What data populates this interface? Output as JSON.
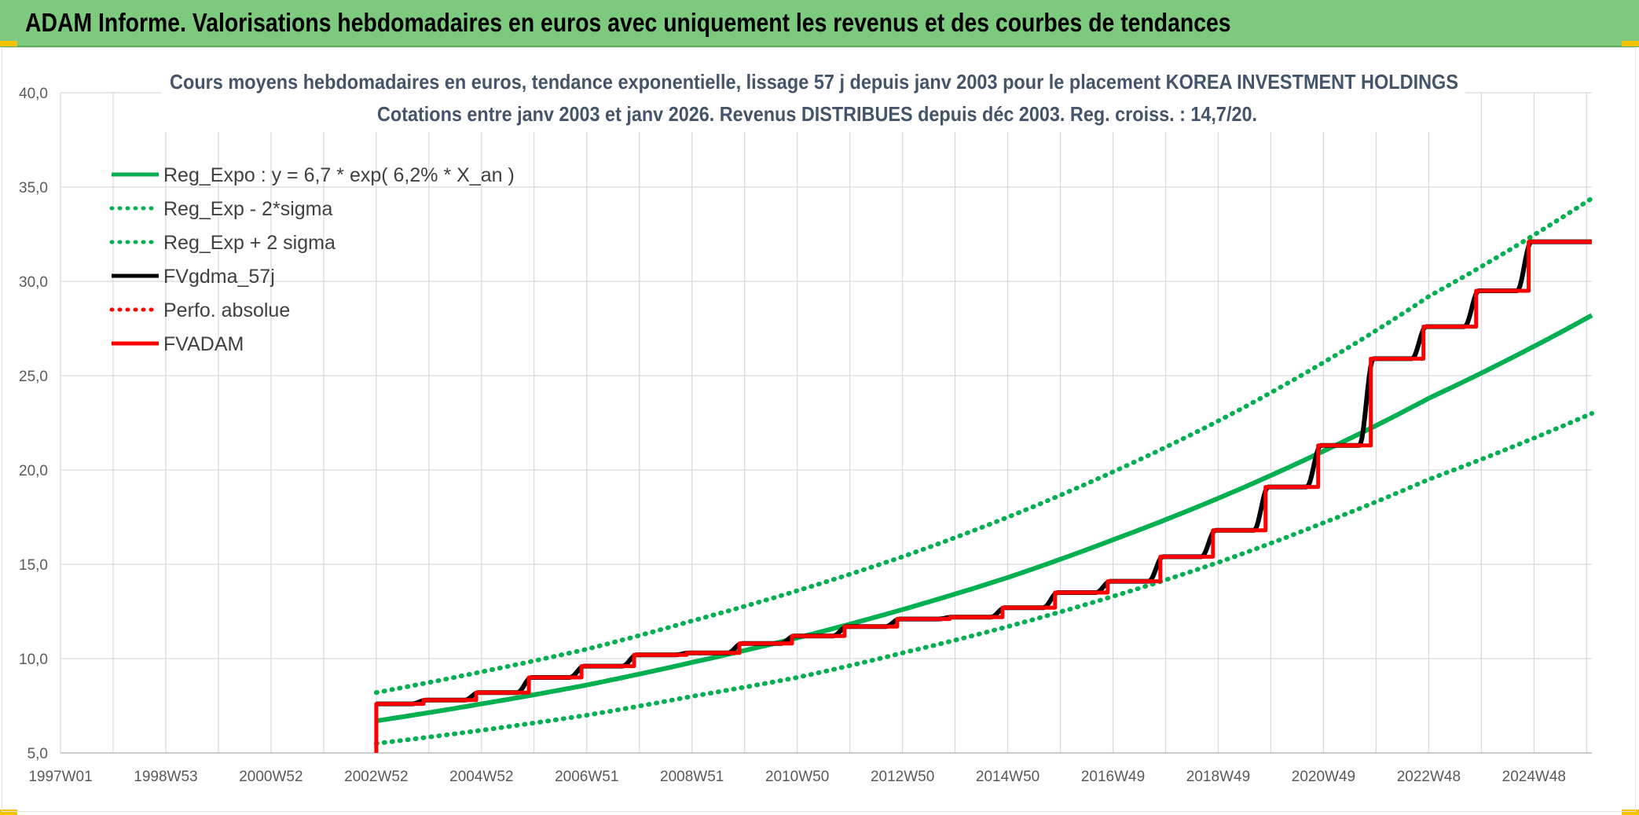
{
  "banner": {
    "title": "ADAM Informe. Valorisations hebdomadaires en euros avec uniquement les revenus et des courbes de tendances"
  },
  "chart_data": {
    "type": "line",
    "title_line1": "Cours moyens hebdomadaires en euros, tendance exponentielle, lissage 57 j depuis janv 2003 pour le placement KOREA INVESTMENT HOLDINGS",
    "title_line2": "Cotations entre janv 2003 et janv 2026. Revenus DISTRIBUES depuis déc 2003. Reg. croiss. : 14,7/20.",
    "xlabel": "",
    "ylabel": "",
    "x_tick_labels": [
      "1997W01",
      "1998W53",
      "2000W52",
      "2002W52",
      "2004W52",
      "2006W51",
      "2008W51",
      "2010W50",
      "2012W50",
      "2014W50",
      "2016W49",
      "2018W49",
      "2020W49",
      "2022W48",
      "2024W48"
    ],
    "x_tick_years": [
      1997,
      1999,
      2001,
      2003,
      2005,
      2007,
      2009,
      2011,
      2013,
      2015,
      2017,
      2019,
      2021,
      2023,
      2025
    ],
    "xlim": [
      1997,
      2026.1
    ],
    "y_ticks": [
      "5,0",
      "10,0",
      "15,0",
      "20,0",
      "25,0",
      "30,0",
      "35,0",
      "40,0"
    ],
    "y_tick_values": [
      5,
      10,
      15,
      20,
      25,
      30,
      35,
      40
    ],
    "ylim": [
      5,
      40
    ],
    "grid": true,
    "legend_position": "top-left",
    "colors": {
      "green": "#00b050",
      "black": "#000000",
      "red": "#ff0000"
    },
    "series": [
      {
        "name": "Reg_Expo : y = 6,7 * exp( 6,2% *  X_an )",
        "style": "solid",
        "color": "#00b050",
        "x": [
          2003,
          2005,
          2007,
          2009,
          2011,
          2013,
          2015,
          2017,
          2019,
          2021,
          2023,
          2026.1
        ],
        "y": [
          6.7,
          7.6,
          8.6,
          9.8,
          11.1,
          12.6,
          14.3,
          16.3,
          18.5,
          21.0,
          23.8,
          28.2
        ]
      },
      {
        "name": "Reg_Exp - 2*sigma",
        "style": "dotted",
        "color": "#00b050",
        "x": [
          2003,
          2005,
          2007,
          2009,
          2011,
          2013,
          2015,
          2017,
          2019,
          2021,
          2023,
          2026.1
        ],
        "y": [
          5.5,
          6.2,
          7.0,
          8.0,
          9.0,
          10.3,
          11.7,
          13.3,
          15.1,
          17.2,
          19.5,
          23.0
        ]
      },
      {
        "name": "Reg_Exp + 2 sigma",
        "style": "dotted",
        "color": "#00b050",
        "x": [
          2003,
          2005,
          2007,
          2009,
          2011,
          2013,
          2015,
          2017,
          2019,
          2021,
          2023,
          2026.1
        ],
        "y": [
          8.2,
          9.3,
          10.5,
          12.0,
          13.6,
          15.4,
          17.5,
          19.9,
          22.6,
          25.7,
          29.2,
          34.4
        ]
      },
      {
        "name": "FVgdma_57j",
        "style": "solid",
        "color": "#000000",
        "x": [
          2003.0,
          2003.9,
          2004.9,
          2005.9,
          2006.9,
          2007.9,
          2008.9,
          2009.9,
          2010.9,
          2011.9,
          2012.9,
          2013.9,
          2014.9,
          2015.9,
          2016.9,
          2017.9,
          2018.9,
          2019.9,
          2020.9,
          2021.9,
          2022.9,
          2023.9,
          2024.9,
          2026.1
        ],
        "y": [
          7.6,
          7.8,
          8.2,
          9.0,
          9.6,
          10.2,
          10.3,
          10.8,
          11.2,
          11.7,
          12.1,
          12.2,
          12.7,
          13.5,
          14.1,
          15.4,
          16.8,
          19.1,
          21.3,
          25.9,
          27.6,
          29.5,
          32.1,
          32.1
        ]
      },
      {
        "name": "Perfo. absolue",
        "style": "dotted",
        "color": "#ff0000",
        "x": [],
        "y": []
      },
      {
        "name": "FVADAM",
        "style": "solid",
        "color": "#ff0000",
        "x": [
          2003.0,
          2003.9,
          2004.9,
          2005.9,
          2006.9,
          2007.9,
          2008.9,
          2009.9,
          2010.9,
          2011.9,
          2012.9,
          2013.9,
          2014.9,
          2015.9,
          2016.9,
          2017.9,
          2018.9,
          2019.9,
          2020.9,
          2021.9,
          2022.9,
          2023.9,
          2024.9,
          2026.1
        ],
        "y": [
          7.6,
          7.8,
          8.2,
          9.0,
          9.6,
          10.2,
          10.3,
          10.8,
          11.2,
          11.7,
          12.1,
          12.2,
          12.7,
          13.5,
          14.1,
          15.4,
          16.8,
          19.1,
          21.3,
          25.9,
          27.6,
          29.5,
          32.1,
          32.1
        ]
      }
    ]
  }
}
